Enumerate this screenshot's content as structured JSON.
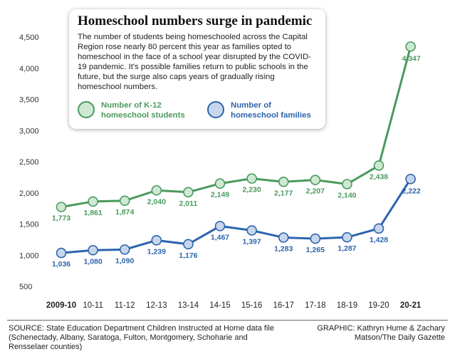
{
  "chart_data": {
    "type": "line",
    "title": "Homeschool numbers surge in pandemic",
    "description": "The number of students being homeschooled across the Capital Region rose nearly 80 percent this year as families opted to homeschool in the face of a school year disrupted by the COVID-19 pandemic. It's possible families return to public schools in the future, but the surge also caps years of gradually rising homeschool numbers.",
    "categories": [
      "2009-10",
      "10-11",
      "11-12",
      "12-13",
      "13-14",
      "14-15",
      "15-16",
      "16-17",
      "17-18",
      "18-19",
      "19-20",
      "20-21"
    ],
    "bold_categories": [
      "2009-10",
      "20-21"
    ],
    "series": [
      {
        "name": "Number of K-12 homeschool students",
        "legend_lines": [
          "Number of K-12",
          "homeschool students"
        ],
        "color": "#4a9a5e",
        "fill": "#cfe8d3",
        "values": [
          1773,
          1861,
          1874,
          2040,
          2011,
          2149,
          2230,
          2177,
          2207,
          2140,
          2438,
          4347
        ],
        "labels": [
          "1,773",
          "1,861",
          "1,874",
          "2,040",
          "2,011",
          "2,149",
          "2,230",
          "2,177",
          "2,207",
          "2,140",
          "2,438",
          "4,347"
        ]
      },
      {
        "name": "Number of homeschool families",
        "legend_lines": [
          "Number of",
          "homeschool families"
        ],
        "color": "#2d64ad",
        "fill": "#c8d6ec",
        "values": [
          1036,
          1080,
          1090,
          1239,
          1176,
          1467,
          1397,
          1283,
          1265,
          1287,
          1428,
          2222
        ],
        "labels": [
          "1,036",
          "1,080",
          "1,090",
          "1,239",
          "1,176",
          "1,467",
          "1,397",
          "1,283",
          "1,265",
          "1,287",
          "1,428",
          "2,222"
        ]
      }
    ],
    "yticks": [
      500,
      1000,
      1500,
      2000,
      2500,
      3000,
      3500,
      4000,
      4500
    ],
    "ytick_labels": [
      "500",
      "1,000",
      "1,500",
      "2,000",
      "2,500",
      "3,000",
      "3,500",
      "4,000",
      "4,500"
    ],
    "ylim": [
      500,
      4500
    ],
    "grid": false,
    "legend_position": "inside info box, top-left"
  },
  "footer": {
    "source": "SOURCE: State Education Department Children Instructed at Home data file (Schenectady, Albany, Saratoga, Fulton, Montgomery, Schoharie and Rensselaer counties)",
    "credit": "GRAPHIC: Kathryn Hume & Zachary Matson/The Daily Gazette"
  }
}
